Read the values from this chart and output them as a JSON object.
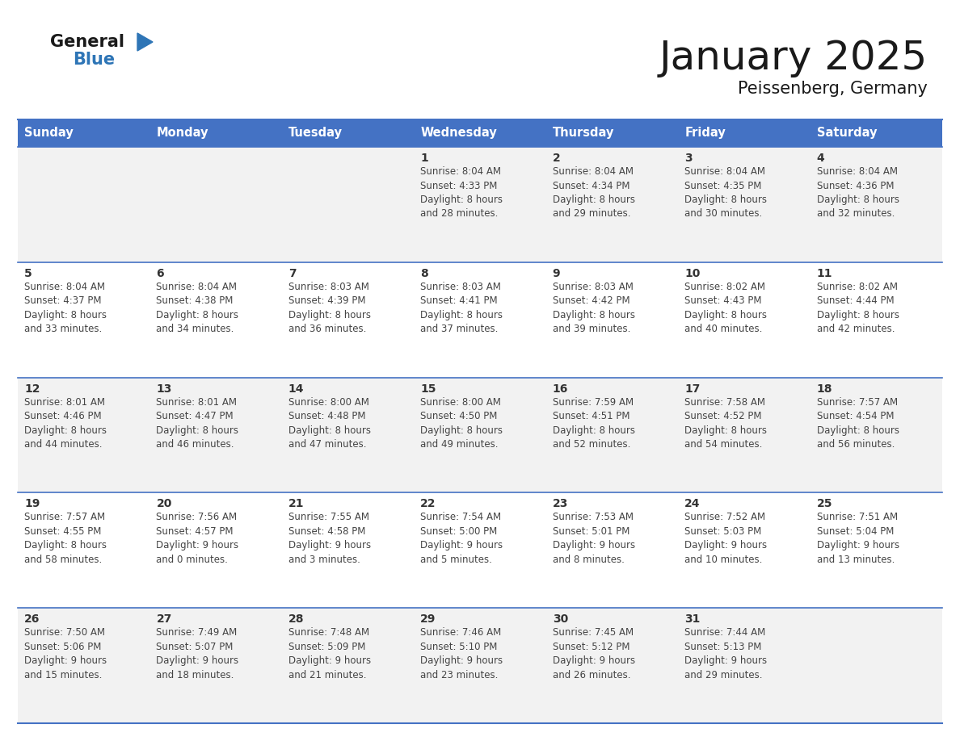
{
  "title": "January 2025",
  "subtitle": "Peissenberg, Germany",
  "header_bg": "#4472C4",
  "header_text_color": "#FFFFFF",
  "weekdays": [
    "Sunday",
    "Monday",
    "Tuesday",
    "Wednesday",
    "Thursday",
    "Friday",
    "Saturday"
  ],
  "row_bg_even": "#F2F2F2",
  "row_bg_odd": "#FFFFFF",
  "row_divider_color": "#4472C4",
  "day_number_color": "#333333",
  "text_color": "#444444",
  "calendar": [
    [
      {
        "day": "",
        "info": ""
      },
      {
        "day": "",
        "info": ""
      },
      {
        "day": "",
        "info": ""
      },
      {
        "day": "1",
        "info": "Sunrise: 8:04 AM\nSunset: 4:33 PM\nDaylight: 8 hours\nand 28 minutes."
      },
      {
        "day": "2",
        "info": "Sunrise: 8:04 AM\nSunset: 4:34 PM\nDaylight: 8 hours\nand 29 minutes."
      },
      {
        "day": "3",
        "info": "Sunrise: 8:04 AM\nSunset: 4:35 PM\nDaylight: 8 hours\nand 30 minutes."
      },
      {
        "day": "4",
        "info": "Sunrise: 8:04 AM\nSunset: 4:36 PM\nDaylight: 8 hours\nand 32 minutes."
      }
    ],
    [
      {
        "day": "5",
        "info": "Sunrise: 8:04 AM\nSunset: 4:37 PM\nDaylight: 8 hours\nand 33 minutes."
      },
      {
        "day": "6",
        "info": "Sunrise: 8:04 AM\nSunset: 4:38 PM\nDaylight: 8 hours\nand 34 minutes."
      },
      {
        "day": "7",
        "info": "Sunrise: 8:03 AM\nSunset: 4:39 PM\nDaylight: 8 hours\nand 36 minutes."
      },
      {
        "day": "8",
        "info": "Sunrise: 8:03 AM\nSunset: 4:41 PM\nDaylight: 8 hours\nand 37 minutes."
      },
      {
        "day": "9",
        "info": "Sunrise: 8:03 AM\nSunset: 4:42 PM\nDaylight: 8 hours\nand 39 minutes."
      },
      {
        "day": "10",
        "info": "Sunrise: 8:02 AM\nSunset: 4:43 PM\nDaylight: 8 hours\nand 40 minutes."
      },
      {
        "day": "11",
        "info": "Sunrise: 8:02 AM\nSunset: 4:44 PM\nDaylight: 8 hours\nand 42 minutes."
      }
    ],
    [
      {
        "day": "12",
        "info": "Sunrise: 8:01 AM\nSunset: 4:46 PM\nDaylight: 8 hours\nand 44 minutes."
      },
      {
        "day": "13",
        "info": "Sunrise: 8:01 AM\nSunset: 4:47 PM\nDaylight: 8 hours\nand 46 minutes."
      },
      {
        "day": "14",
        "info": "Sunrise: 8:00 AM\nSunset: 4:48 PM\nDaylight: 8 hours\nand 47 minutes."
      },
      {
        "day": "15",
        "info": "Sunrise: 8:00 AM\nSunset: 4:50 PM\nDaylight: 8 hours\nand 49 minutes."
      },
      {
        "day": "16",
        "info": "Sunrise: 7:59 AM\nSunset: 4:51 PM\nDaylight: 8 hours\nand 52 minutes."
      },
      {
        "day": "17",
        "info": "Sunrise: 7:58 AM\nSunset: 4:52 PM\nDaylight: 8 hours\nand 54 minutes."
      },
      {
        "day": "18",
        "info": "Sunrise: 7:57 AM\nSunset: 4:54 PM\nDaylight: 8 hours\nand 56 minutes."
      }
    ],
    [
      {
        "day": "19",
        "info": "Sunrise: 7:57 AM\nSunset: 4:55 PM\nDaylight: 8 hours\nand 58 minutes."
      },
      {
        "day": "20",
        "info": "Sunrise: 7:56 AM\nSunset: 4:57 PM\nDaylight: 9 hours\nand 0 minutes."
      },
      {
        "day": "21",
        "info": "Sunrise: 7:55 AM\nSunset: 4:58 PM\nDaylight: 9 hours\nand 3 minutes."
      },
      {
        "day": "22",
        "info": "Sunrise: 7:54 AM\nSunset: 5:00 PM\nDaylight: 9 hours\nand 5 minutes."
      },
      {
        "day": "23",
        "info": "Sunrise: 7:53 AM\nSunset: 5:01 PM\nDaylight: 9 hours\nand 8 minutes."
      },
      {
        "day": "24",
        "info": "Sunrise: 7:52 AM\nSunset: 5:03 PM\nDaylight: 9 hours\nand 10 minutes."
      },
      {
        "day": "25",
        "info": "Sunrise: 7:51 AM\nSunset: 5:04 PM\nDaylight: 9 hours\nand 13 minutes."
      }
    ],
    [
      {
        "day": "26",
        "info": "Sunrise: 7:50 AM\nSunset: 5:06 PM\nDaylight: 9 hours\nand 15 minutes."
      },
      {
        "day": "27",
        "info": "Sunrise: 7:49 AM\nSunset: 5:07 PM\nDaylight: 9 hours\nand 18 minutes."
      },
      {
        "day": "28",
        "info": "Sunrise: 7:48 AM\nSunset: 5:09 PM\nDaylight: 9 hours\nand 21 minutes."
      },
      {
        "day": "29",
        "info": "Sunrise: 7:46 AM\nSunset: 5:10 PM\nDaylight: 9 hours\nand 23 minutes."
      },
      {
        "day": "30",
        "info": "Sunrise: 7:45 AM\nSunset: 5:12 PM\nDaylight: 9 hours\nand 26 minutes."
      },
      {
        "day": "31",
        "info": "Sunrise: 7:44 AM\nSunset: 5:13 PM\nDaylight: 9 hours\nand 29 minutes."
      },
      {
        "day": "",
        "info": ""
      }
    ]
  ],
  "logo_general_color": "#1a1a1a",
  "logo_blue_color": "#2E75B6",
  "logo_triangle_color": "#2E75B6",
  "header_font_size": 10.5,
  "day_number_font_size": 10,
  "info_font_size": 8.5,
  "title_font_size": 36,
  "subtitle_font_size": 15,
  "logo_fontsize": 15,
  "fig_width": 11.88,
  "fig_height": 9.18,
  "dpi": 100
}
